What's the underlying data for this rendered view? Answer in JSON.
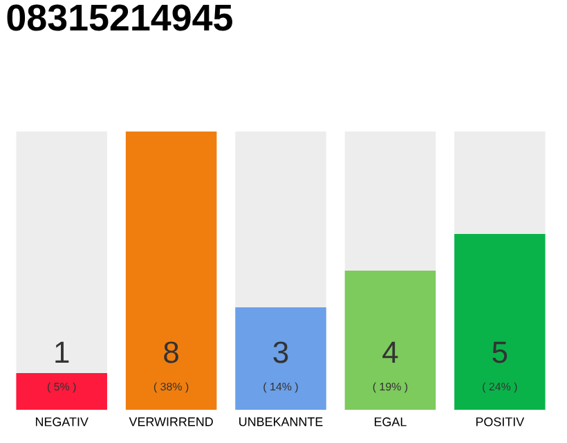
{
  "chart_data": {
    "type": "bar",
    "title": "08315214945",
    "categories": [
      "NEGATIV",
      "VERWIRREND",
      "UNBEKANNTE",
      "EGAL",
      "POSITIV"
    ],
    "values": [
      5,
      38,
      14,
      19,
      24
    ],
    "colors": [
      "#fd1a3c",
      "#f07e0e",
      "#6ca0e8",
      "#7dca5d",
      "#0ab34a"
    ],
    "value_labels": [
      "( 5% )",
      "( 38% )",
      "( 14% )",
      "( 19% )",
      "( 24% )"
    ],
    "annotations": [
      "1",
      "8",
      "3",
      "4",
      "5"
    ]
  }
}
